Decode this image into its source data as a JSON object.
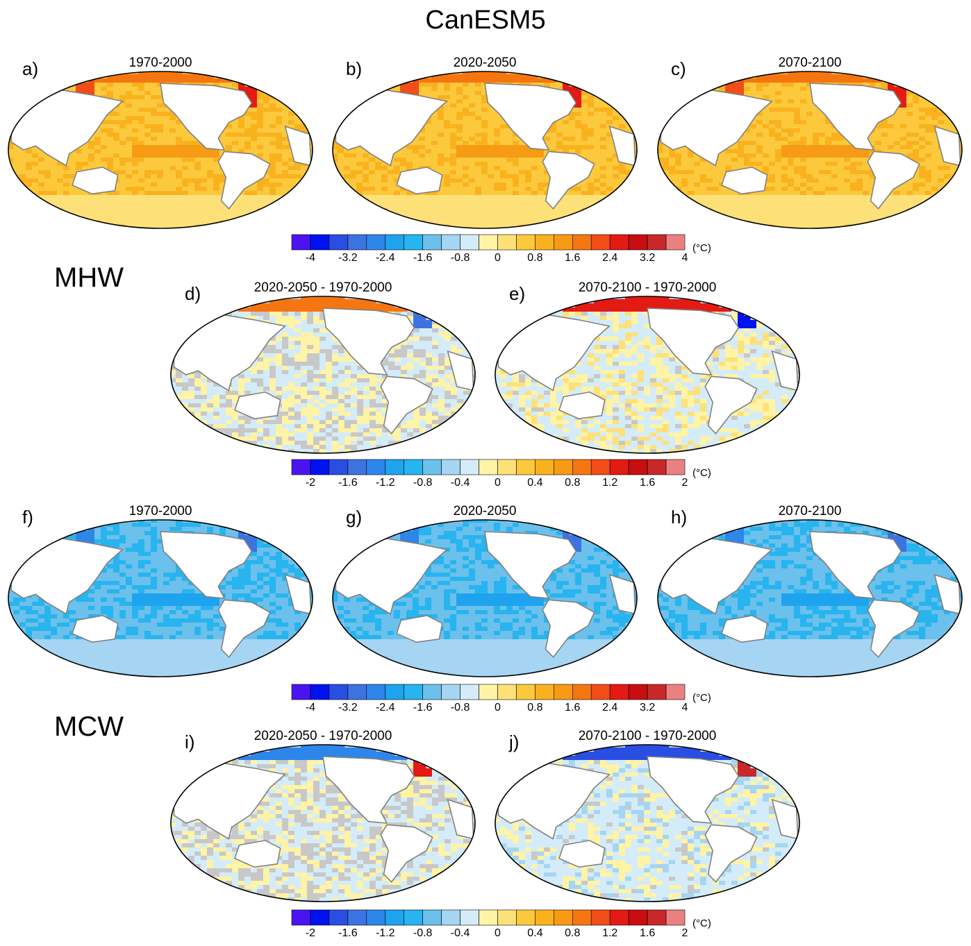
{
  "figure": {
    "title": "CanESM5",
    "sections": [
      {
        "id": "mhw",
        "label": "MHW"
      },
      {
        "id": "mcw",
        "label": "MCW"
      }
    ]
  },
  "colors": {
    "ocean_warm_base": "#f9c23c",
    "ocean_warm_hi": "#f5a623",
    "ocean_cool_base": "#8fc6ec",
    "ocean_cool_hi": "#6aaee6",
    "land": "#ffffff",
    "coast": "#808080",
    "diff_neutral_pos": "#ffef9e",
    "diff_neutral_neg": "#cfe6f6",
    "insignificant": "#c8c8c8"
  },
  "colorbars": {
    "absolute": {
      "colors": [
        "#4a14f0",
        "#0012f0",
        "#2a4ee2",
        "#3d73e0",
        "#2d86ea",
        "#1ea3ee",
        "#27b4ef",
        "#6cc0ec",
        "#a5d5f2",
        "#d4ecf9",
        "#fff3a6",
        "#fde178",
        "#fcc93c",
        "#f9b21e",
        "#f79a14",
        "#f57610",
        "#f04d18",
        "#e41a14",
        "#c80e10",
        "#c8282a",
        "#ea8080"
      ],
      "ticks": [
        "-4",
        "-3.2",
        "-2.4",
        "-1.6",
        "-0.8",
        "0",
        "0.8",
        "1.6",
        "2.4",
        "3.2",
        "4"
      ],
      "unit": "(°C)"
    },
    "difference": {
      "colors": [
        "#4a14f0",
        "#0012f0",
        "#2a4ee2",
        "#3d73e0",
        "#2d86ea",
        "#1ea3ee",
        "#27b4ef",
        "#6cc0ec",
        "#a5d5f2",
        "#d4ecf9",
        "#fff3a6",
        "#fde178",
        "#fcc93c",
        "#f9b21e",
        "#f79a14",
        "#f57610",
        "#f04d18",
        "#e41a14",
        "#c80e10",
        "#c8282a",
        "#ea8080"
      ],
      "ticks": [
        "-2",
        "-1.6",
        "-1.2",
        "-0.8",
        "-0.4",
        "0",
        "0.4",
        "0.8",
        "1.2",
        "1.6",
        "2"
      ],
      "unit": "(°C)"
    }
  },
  "panels": [
    {
      "letter": "a)",
      "period": "1970-2000",
      "kind": "abs-warm"
    },
    {
      "letter": "b)",
      "period": "2020-2050",
      "kind": "abs-warm"
    },
    {
      "letter": "c)",
      "period": "2070-2100",
      "kind": "abs-warm"
    },
    {
      "letter": "d)",
      "period": "2020-2050 - 1970-2000",
      "kind": "diff-mhw-mid"
    },
    {
      "letter": "e)",
      "period": "2070-2100 - 1970-2000",
      "kind": "diff-mhw-end"
    },
    {
      "letter": "f)",
      "period": "1970-2000",
      "kind": "abs-cool"
    },
    {
      "letter": "g)",
      "period": "2020-2050",
      "kind": "abs-cool"
    },
    {
      "letter": "h)",
      "period": "2070-2100",
      "kind": "abs-cool"
    },
    {
      "letter": "i)",
      "period": "2020-2050 - 1970-2000",
      "kind": "diff-mcw-mid"
    },
    {
      "letter": "j)",
      "period": "2070-2100 - 1970-2000",
      "kind": "diff-mcw-end"
    }
  ],
  "chart_data": {
    "type": "heatmap",
    "title": "CanESM5",
    "description_rows": [
      "MHW",
      "MCW"
    ],
    "panels": [
      {
        "id": "a",
        "title": "1970-2000",
        "colorbar": "absolute"
      },
      {
        "id": "b",
        "title": "2020-2050",
        "colorbar": "absolute"
      },
      {
        "id": "c",
        "title": "2070-2100",
        "colorbar": "absolute"
      },
      {
        "id": "d",
        "title": "2020-2050 - 1970-2000",
        "colorbar": "difference"
      },
      {
        "id": "e",
        "title": "2070-2100 - 1970-2000",
        "colorbar": "difference"
      },
      {
        "id": "f",
        "title": "1970-2000",
        "colorbar": "absolute"
      },
      {
        "id": "g",
        "title": "2020-2050",
        "colorbar": "absolute"
      },
      {
        "id": "h",
        "title": "2070-2100",
        "colorbar": "absolute"
      },
      {
        "id": "i",
        "title": "2020-2050 - 1970-2000",
        "colorbar": "difference"
      },
      {
        "id": "j",
        "title": "2070-2100 - 1970-2000",
        "colorbar": "difference"
      }
    ],
    "colorbar_absolute_range": [
      -4.2,
      4.2
    ],
    "colorbar_difference_range": [
      -2.1,
      2.1
    ],
    "unit": "(°C)"
  }
}
